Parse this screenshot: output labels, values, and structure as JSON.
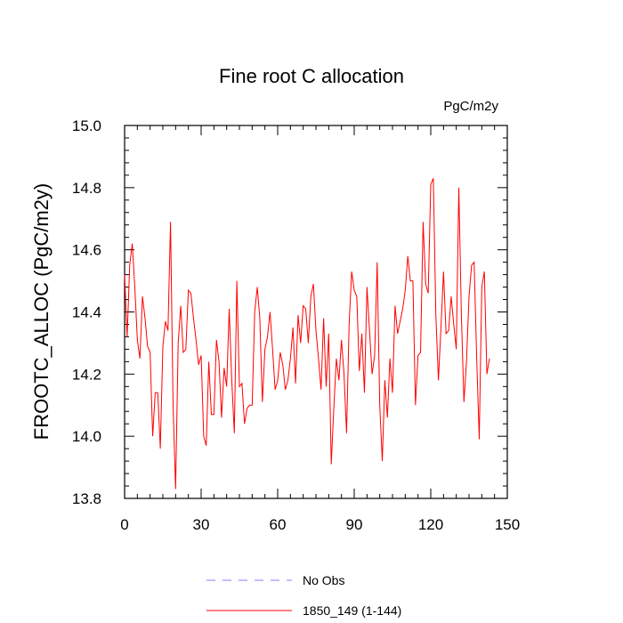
{
  "chart_data": {
    "type": "line",
    "title": "Fine root C allocation",
    "units_label": "PgC/m2y",
    "xlabel": "",
    "ylabel": "FROOTC_ALLOC  (PgC/m2y)",
    "xlim": [
      0,
      150
    ],
    "ylim": [
      13.8,
      15.0
    ],
    "x_ticks": [
      0,
      30,
      60,
      90,
      120,
      150
    ],
    "x_tick_labels": [
      "0",
      "30",
      "60",
      "90",
      "120",
      "150"
    ],
    "y_ticks": [
      13.8,
      14.0,
      14.2,
      14.4,
      14.6,
      14.8,
      15.0
    ],
    "y_tick_labels": [
      "13.8",
      "14.0",
      "14.2",
      "14.4",
      "14.6",
      "14.8",
      "15.0"
    ],
    "grid": false,
    "legend_position": "bottom-center",
    "legend": [
      {
        "label": "No Obs",
        "color": "#8080ff",
        "style": "dashed"
      },
      {
        "label": "1850_149 (1-144)",
        "color": "#ff0000",
        "style": "solid"
      }
    ],
    "series": [
      {
        "name": "1850_149 (1-144)",
        "color": "#ff0000",
        "start_x": 0,
        "values": [
          14.52,
          14.32,
          14.55,
          14.62,
          14.48,
          14.31,
          14.25,
          14.45,
          14.38,
          14.29,
          14.27,
          14.0,
          14.14,
          14.14,
          13.96,
          14.29,
          14.37,
          14.34,
          14.69,
          14.1,
          13.83,
          14.3,
          14.42,
          14.27,
          14.28,
          14.47,
          14.46,
          14.38,
          14.31,
          14.23,
          14.26,
          14.0,
          13.97,
          14.24,
          14.07,
          14.07,
          14.31,
          14.24,
          14.06,
          14.22,
          14.16,
          14.41,
          14.18,
          14.01,
          14.5,
          14.16,
          14.17,
          14.04,
          14.09,
          14.1,
          14.1,
          14.4,
          14.48,
          14.38,
          14.11,
          14.28,
          14.32,
          14.4,
          14.28,
          14.15,
          14.18,
          14.27,
          14.23,
          14.15,
          14.18,
          14.25,
          14.35,
          14.17,
          14.39,
          14.3,
          14.42,
          14.41,
          14.3,
          14.45,
          14.49,
          14.34,
          14.25,
          14.15,
          14.38,
          14.16,
          14.33,
          13.91,
          14.09,
          14.25,
          14.18,
          14.31,
          14.2,
          14.01,
          14.36,
          14.53,
          14.47,
          14.45,
          14.21,
          14.33,
          14.14,
          14.48,
          14.34,
          14.2,
          14.26,
          14.56,
          14.1,
          13.92,
          14.18,
          14.06,
          14.25,
          14.14,
          14.42,
          14.33,
          14.37,
          14.41,
          14.47,
          14.58,
          14.5,
          14.5,
          14.1,
          14.26,
          14.27,
          14.69,
          14.49,
          14.46,
          14.81,
          14.83,
          14.39,
          14.18,
          14.35,
          14.53,
          14.33,
          14.34,
          14.45,
          14.36,
          14.28,
          14.8,
          14.39,
          14.11,
          14.24,
          14.45,
          14.55,
          14.56,
          14.25,
          13.99,
          14.48,
          14.53,
          14.2,
          14.25
        ]
      }
    ]
  }
}
